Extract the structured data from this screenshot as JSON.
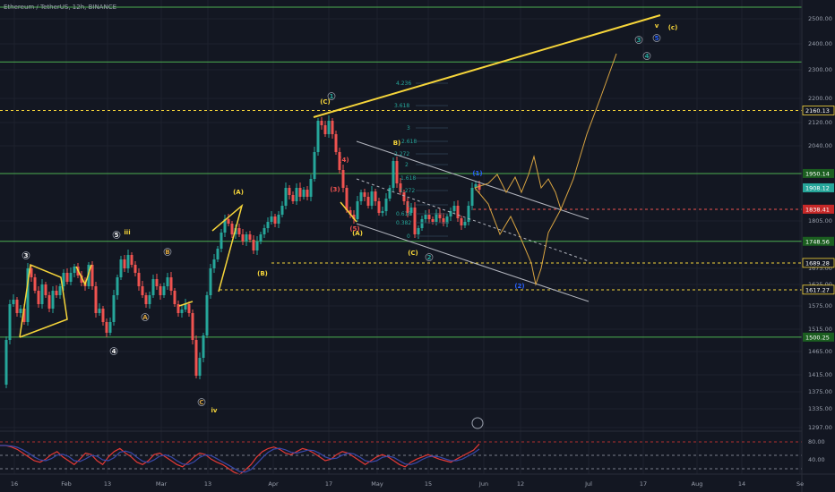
{
  "header": {
    "title": "Ethereum / TetherUS, 12h, BINANCE"
  },
  "colors": {
    "bg": "#131722",
    "grid": "#1e222d",
    "up": "#26a69a",
    "down": "#ef5350",
    "yellow": "#f6d53a",
    "orange": "#d9a441",
    "green_line": "#4caf50",
    "red_dashed": "#ef5350",
    "white_line": "#b2b5be",
    "rsi": "#e53935",
    "rsi_ma": "#3949ab"
  },
  "chart_data": {
    "type": "candlestick",
    "title": "Ethereum / TetherUS, 12h, BINANCE",
    "y_axis": {
      "ticks": [
        "2500.00",
        "2400.00",
        "2300.00",
        "2200.00",
        "2120.00",
        "2040.00",
        "1805.00",
        "1675.00",
        "1625.00",
        "1575.00",
        "1515.00",
        "1465.00",
        "1415.00",
        "1375.00",
        "1335.00",
        "1297.00"
      ],
      "min": 1297,
      "max": 2530
    },
    "x_axis": {
      "ticks": [
        "16",
        "Feb",
        "13",
        "Mar",
        "13",
        "Apr",
        "17",
        "May",
        "15",
        "Jun",
        "12",
        "Jul",
        "17",
        "Aug",
        "14",
        "Se"
      ]
    },
    "price_labels": [
      {
        "text": "2160.13",
        "value": 2160.13,
        "style": "yellow-dashed"
      },
      {
        "text": "1950.14",
        "value": 1950.14,
        "style": "green"
      },
      {
        "text": "1908.12",
        "value": 1908.12,
        "style": "current"
      },
      {
        "text": "1838.41",
        "value": 1838.41,
        "style": "red"
      },
      {
        "text": "1748.56",
        "value": 1748.56,
        "style": "green"
      },
      {
        "text": "1689.28",
        "value": 1689.28,
        "style": "yellow-dashed"
      },
      {
        "text": "1617.27",
        "value": 1617.27,
        "style": "yellow-dashed"
      },
      {
        "text": "1500.25",
        "value": 1500.25,
        "style": "green"
      }
    ],
    "horizontal_lines": [
      {
        "value": 2530,
        "style": "green"
      },
      {
        "value": 2330,
        "style": "green"
      },
      {
        "value": 2160.13,
        "style": "yellow-dashed"
      },
      {
        "value": 1950.14,
        "style": "green"
      },
      {
        "value": 1748.56,
        "style": "green"
      },
      {
        "value": 1500.25,
        "style": "green"
      }
    ],
    "fib_levels": [
      "4.236",
      "3.618",
      "3",
      "2.618",
      "2.272",
      "2",
      "1.618",
      "1.272",
      "1",
      "0.618",
      "0.382",
      "0"
    ],
    "wave_labels": [
      "(C)",
      "1",
      "iii",
      "5",
      "3",
      "4",
      "B",
      "A",
      "C",
      "iv",
      "(A)",
      "(B)",
      "(A)",
      "(4)",
      "(3)",
      "(5)",
      "B)",
      "(C)",
      "2",
      "(1)",
      "3",
      "4",
      "5",
      "v",
      "(c)",
      "(2)"
    ],
    "rsi": {
      "ticks": [
        "80.00",
        "40.00"
      ],
      "values": [
        70,
        70,
        68,
        65,
        60,
        55,
        50,
        48,
        52,
        58,
        62,
        55,
        50,
        45,
        52,
        60,
        58,
        50,
        45,
        55,
        62,
        66,
        60,
        55,
        48,
        45,
        50,
        58,
        60,
        55,
        50,
        45,
        42,
        48,
        55,
        60,
        58,
        52,
        48,
        45,
        40,
        35,
        32,
        38,
        45,
        55,
        62,
        66,
        68,
        65,
        60,
        58,
        62,
        66,
        64,
        60,
        55,
        50,
        52,
        58,
        62,
        60,
        55,
        50,
        45,
        50,
        55,
        58,
        55,
        50,
        45,
        42,
        48,
        52,
        55,
        58,
        55,
        52,
        50,
        48,
        52,
        56,
        60,
        64,
        72
      ]
    }
  }
}
